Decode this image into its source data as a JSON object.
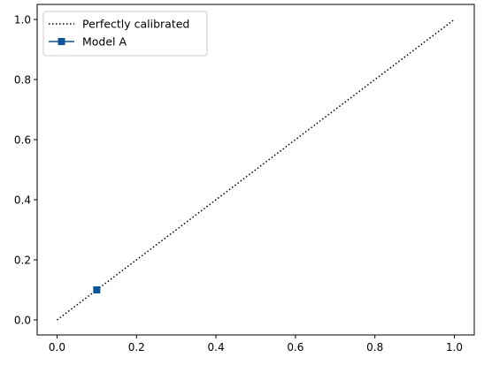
{
  "chart_data": {
    "type": "line",
    "title": "",
    "xlabel": "",
    "ylabel": "",
    "xlim": [
      -0.05,
      1.05
    ],
    "ylim": [
      -0.05,
      1.05
    ],
    "xticks": [
      0.0,
      0.2,
      0.4,
      0.6,
      0.8,
      1.0
    ],
    "yticks": [
      0.0,
      0.2,
      0.4,
      0.6,
      0.8,
      1.0
    ],
    "xtick_labels": [
      "0.0",
      "0.2",
      "0.4",
      "0.6",
      "0.8",
      "1.0"
    ],
    "ytick_labels": [
      "0.0",
      "0.2",
      "0.4",
      "0.6",
      "0.8",
      "1.0"
    ],
    "grid": false,
    "legend": "top-left",
    "series": [
      {
        "name": "Perfectly calibrated",
        "x": [
          0,
          1
        ],
        "y": [
          0,
          1
        ],
        "style": "dotted",
        "marker": "none",
        "color": "#000000"
      },
      {
        "name": "Model A",
        "x": [
          0.1
        ],
        "y": [
          0.1
        ],
        "style": "solid",
        "marker": "square",
        "color": "#0b559f"
      }
    ]
  }
}
